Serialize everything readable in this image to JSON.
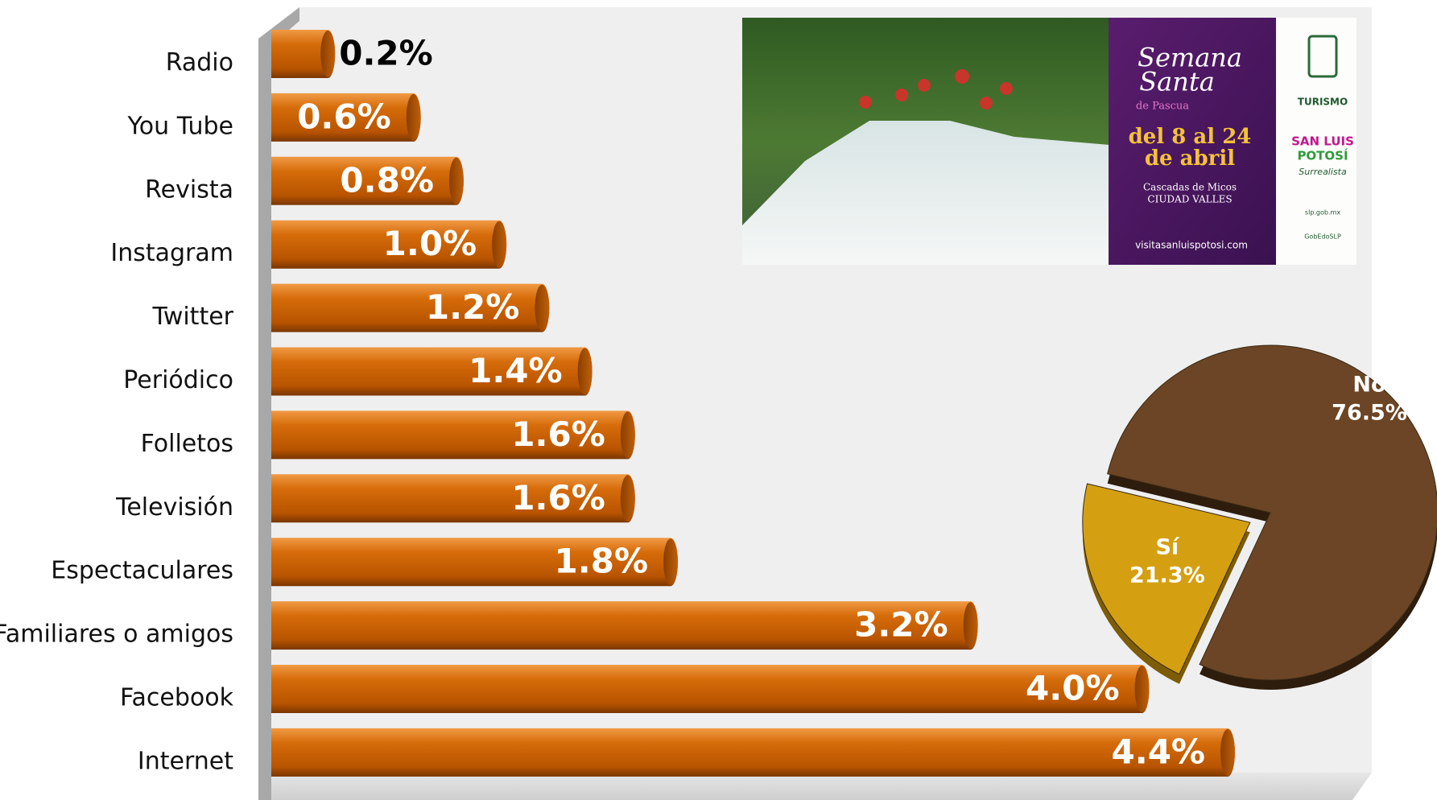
{
  "chart_data": [
    {
      "type": "hbar",
      "categories": [
        "Radio",
        "You Tube",
        "Revista",
        "Instagram",
        "Twitter",
        "Periódico",
        "Folletos",
        "Televisión",
        "Espectaculares",
        "Familiares o amigos",
        "Facebook",
        "Internet"
      ],
      "values": [
        0.2,
        0.6,
        0.8,
        1.0,
        1.2,
        1.4,
        1.6,
        1.6,
        1.8,
        3.2,
        4.0,
        4.4
      ],
      "value_labels": [
        "0.2%",
        "0.6%",
        "0.8%",
        "1.0%",
        "1.2%",
        "1.4%",
        "1.6%",
        "1.6%",
        "1.8%",
        "3.2%",
        "4.0%",
        "4.4%"
      ],
      "color": "#d46a08"
    },
    {
      "type": "pie",
      "categories": [
        "Sí",
        "No"
      ],
      "values": [
        21.3,
        76.5
      ],
      "value_labels": [
        "21.3%",
        "76.5%"
      ],
      "colors": [
        "#d4a012",
        "#6b4525"
      ]
    }
  ],
  "poster": {
    "title": [
      "Semana",
      "Santa"
    ],
    "subtitle": "de Pascua",
    "dates": [
      "del 8 al 24",
      "de abril"
    ],
    "place": [
      "Cascadas de Micos",
      "CIUDAD VALLES"
    ],
    "website": "visitasanluispotosi.com",
    "brand": "TURISMO",
    "state": [
      "SAN LUIS",
      "POTOSÍ",
      "Surrealista"
    ],
    "site": "slp.gob.mx",
    "handle": "GobEdoSLP"
  }
}
